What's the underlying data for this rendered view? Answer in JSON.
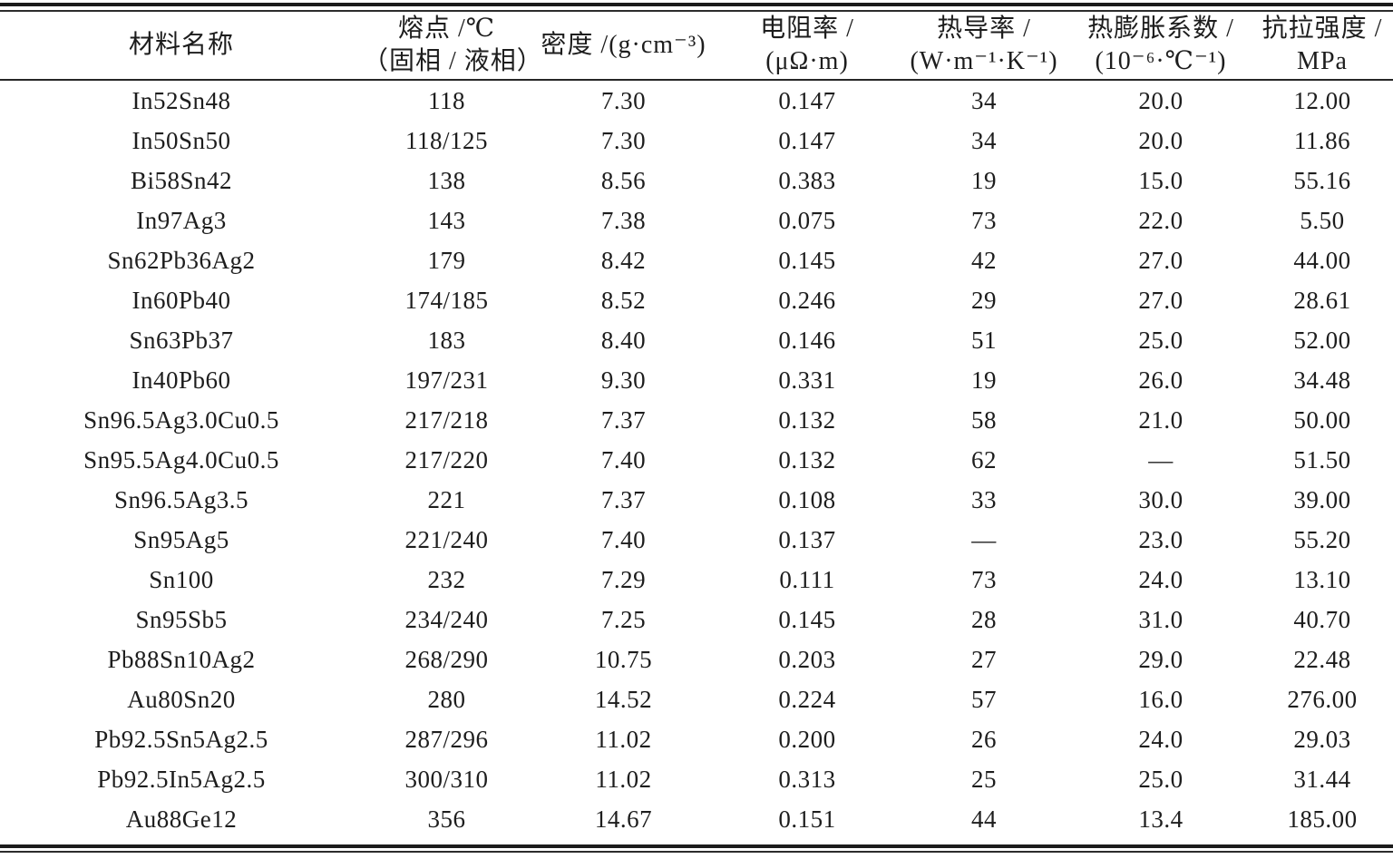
{
  "table": {
    "title_semantic": "solder-alloy-physical-properties",
    "columns": [
      {
        "key": "material",
        "line1": "材料名称",
        "line2": ""
      },
      {
        "key": "melting",
        "line1": "熔点 /℃",
        "line2": "（固相 / 液相）"
      },
      {
        "key": "density",
        "line1": "密度 /(g·cm⁻³)",
        "line2": ""
      },
      {
        "key": "resistivity",
        "line1": "电阻率 /",
        "line2": "(μΩ·m)"
      },
      {
        "key": "conductivity",
        "line1": "热导率 /",
        "line2": "(W·m⁻¹·K⁻¹)"
      },
      {
        "key": "cte",
        "line1": "热膨胀系数 /",
        "line2": "(10⁻⁶·℃⁻¹)"
      },
      {
        "key": "tensile",
        "line1": "抗拉强度 /",
        "line2": "MPa"
      }
    ],
    "rows": [
      [
        "In52Sn48",
        "118",
        "7.30",
        "0.147",
        "34",
        "20.0",
        "12.00"
      ],
      [
        "In50Sn50",
        "118/125",
        "7.30",
        "0.147",
        "34",
        "20.0",
        "11.86"
      ],
      [
        "Bi58Sn42",
        "138",
        "8.56",
        "0.383",
        "19",
        "15.0",
        "55.16"
      ],
      [
        "In97Ag3",
        "143",
        "7.38",
        "0.075",
        "73",
        "22.0",
        "5.50"
      ],
      [
        "Sn62Pb36Ag2",
        "179",
        "8.42",
        "0.145",
        "42",
        "27.0",
        "44.00"
      ],
      [
        "In60Pb40",
        "174/185",
        "8.52",
        "0.246",
        "29",
        "27.0",
        "28.61"
      ],
      [
        "Sn63Pb37",
        "183",
        "8.40",
        "0.146",
        "51",
        "25.0",
        "52.00"
      ],
      [
        "In40Pb60",
        "197/231",
        "9.30",
        "0.331",
        "19",
        "26.0",
        "34.48"
      ],
      [
        "Sn96.5Ag3.0Cu0.5",
        "217/218",
        "7.37",
        "0.132",
        "58",
        "21.0",
        "50.00"
      ],
      [
        "Sn95.5Ag4.0Cu0.5",
        "217/220",
        "7.40",
        "0.132",
        "62",
        "—",
        "51.50"
      ],
      [
        "Sn96.5Ag3.5",
        "221",
        "7.37",
        "0.108",
        "33",
        "30.0",
        "39.00"
      ],
      [
        "Sn95Ag5",
        "221/240",
        "7.40",
        "0.137",
        "—",
        "23.0",
        "55.20"
      ],
      [
        "Sn100",
        "232",
        "7.29",
        "0.111",
        "73",
        "24.0",
        "13.10"
      ],
      [
        "Sn95Sb5",
        "234/240",
        "7.25",
        "0.145",
        "28",
        "31.0",
        "40.70"
      ],
      [
        "Pb88Sn10Ag2",
        "268/290",
        "10.75",
        "0.203",
        "27",
        "29.0",
        "22.48"
      ],
      [
        "Au80Sn20",
        "280",
        "14.52",
        "0.224",
        "57",
        "16.0",
        "276.00"
      ],
      [
        "Pb92.5Sn5Ag2.5",
        "287/296",
        "11.02",
        "0.200",
        "26",
        "24.0",
        "29.03"
      ],
      [
        "Pb92.5In5Ag2.5",
        "300/310",
        "11.02",
        "0.313",
        "25",
        "25.0",
        "31.44"
      ],
      [
        "Au88Ge12",
        "356",
        "14.67",
        "0.151",
        "44",
        "13.4",
        "185.00"
      ]
    ]
  }
}
